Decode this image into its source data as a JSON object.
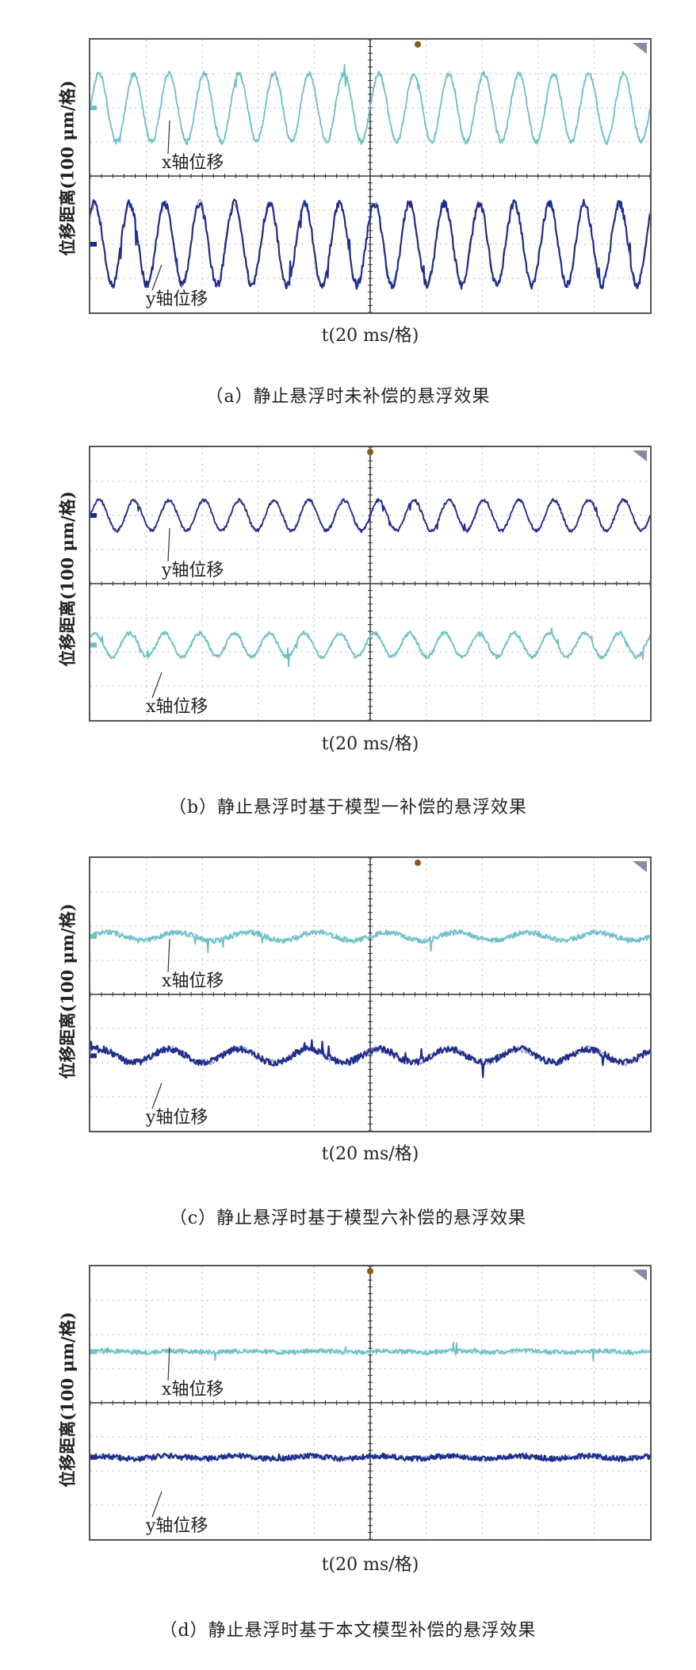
{
  "figure": {
    "ylabel": "位移距离(100 μm/格)",
    "xlabel": "t(20 ms/格)",
    "colors": {
      "x_trace": "#6fc0c8",
      "y_trace": "#1f2e8a",
      "grid": "#bbbbbb",
      "frame": "#555555",
      "center": "#333333",
      "marker": "#8a5a1a"
    }
  },
  "panels": [
    {
      "id": "a",
      "caption": "（a）静止悬浮时未补偿的悬浮效果",
      "xtrace_label": "x轴位移",
      "ytrace_label": "y轴位移",
      "x_order": "top"
    },
    {
      "id": "b",
      "caption": "（b）静止悬浮时基于模型一补偿的悬浮效果",
      "xtrace_label": "x轴位移",
      "ytrace_label": "y轴位移",
      "x_order": "bottom"
    },
    {
      "id": "c",
      "caption": "（c）静止悬浮时基于模型六补偿的悬浮效果",
      "xtrace_label": "x轴位移",
      "ytrace_label": "y轴位移",
      "x_order": "top"
    },
    {
      "id": "d",
      "caption": "（d）静止悬浮时基于本文模型补偿的悬浮效果",
      "xtrace_label": "x轴位移",
      "ytrace_label": "y轴位移",
      "x_order": "top"
    }
  ],
  "chart_data": [
    {
      "type": "line",
      "title": "（a）静止悬浮时未补偿的悬浮效果",
      "xlabel": "t(20 ms/格)",
      "ylabel": "位移距离(100 μm/格)",
      "x_divisions": 10,
      "y_divisions": 8,
      "grid": true,
      "series": [
        {
          "name": "x轴位移",
          "cycles": 16,
          "amplitude_div": 1.0,
          "noise_div": 0.08,
          "offset_div": 2.0
        },
        {
          "name": "y轴位移",
          "cycles": 16,
          "amplitude_div": 1.2,
          "noise_div": 0.12,
          "offset_div": -2.0
        }
      ]
    },
    {
      "type": "line",
      "title": "（b）静止悬浮时基于模型一补偿的悬浮效果",
      "xlabel": "t(20 ms/格)",
      "ylabel": "位移距离(100 μm/格)",
      "x_divisions": 10,
      "y_divisions": 8,
      "grid": true,
      "series": [
        {
          "name": "x轴位移",
          "cycles": 16,
          "amplitude_div": 0.45,
          "noise_div": 0.05,
          "offset_div": 2.0
        },
        {
          "name": "y轴位移",
          "cycles": 16,
          "amplitude_div": 0.35,
          "noise_div": 0.06,
          "offset_div": -1.8
        }
      ]
    },
    {
      "type": "line",
      "title": "（c）静止悬浮时基于模型六补偿的悬浮效果",
      "xlabel": "t(20 ms/格)",
      "ylabel": "位移距离(100 μm/格)",
      "x_divisions": 10,
      "y_divisions": 8,
      "grid": true,
      "series": [
        {
          "name": "x轴位移",
          "cycles": 8,
          "amplitude_div": 0.12,
          "noise_div": 0.08,
          "offset_div": 1.7
        },
        {
          "name": "y轴位移",
          "cycles": 8,
          "amplitude_div": 0.2,
          "noise_div": 0.1,
          "offset_div": -1.8
        }
      ]
    },
    {
      "type": "line",
      "title": "（d）静止悬浮时基于本文模型补偿的悬浮效果",
      "xlabel": "t(20 ms/格)",
      "ylabel": "位移距离(100 μm/格)",
      "x_divisions": 10,
      "y_divisions": 8,
      "grid": true,
      "series": [
        {
          "name": "x轴位移",
          "cycles": 8,
          "amplitude_div": 0.02,
          "noise_div": 0.07,
          "offset_div": 1.5
        },
        {
          "name": "y轴位移",
          "cycles": 8,
          "amplitude_div": 0.04,
          "noise_div": 0.08,
          "offset_div": -1.6
        }
      ]
    }
  ]
}
